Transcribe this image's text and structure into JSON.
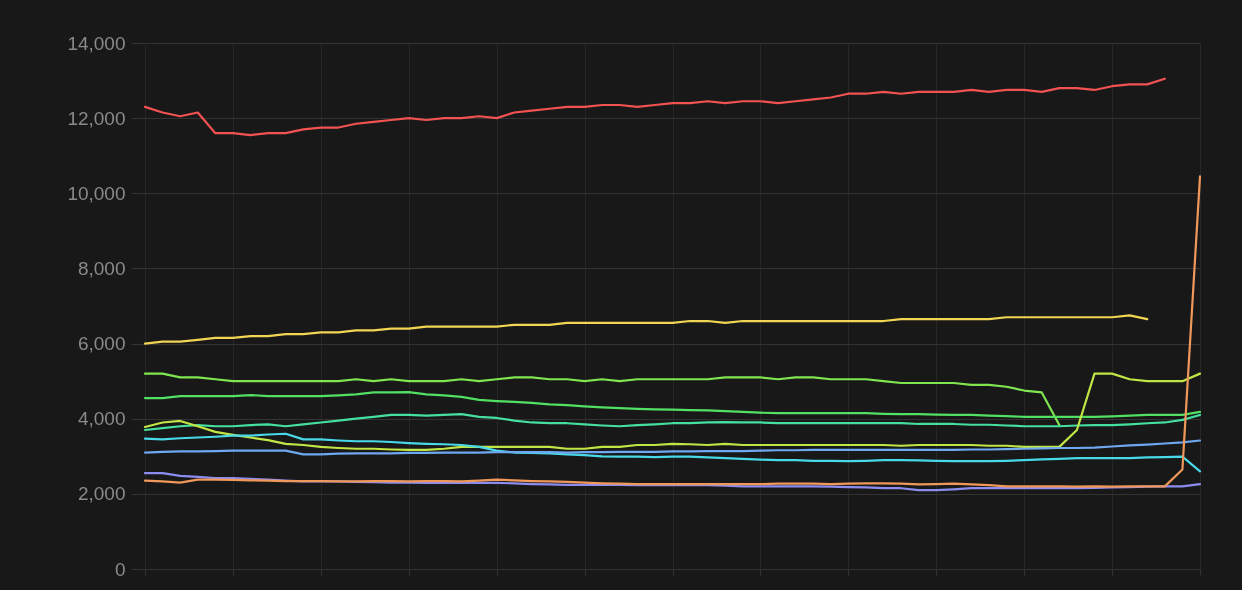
{
  "chart_data": {
    "type": "line",
    "categories": [
      null,
      null,
      null,
      null,
      null,
      null,
      null,
      null,
      null,
      null,
      null,
      null,
      null,
      null,
      null,
      null,
      null,
      null,
      null,
      null,
      null,
      null,
      null,
      null,
      null,
      null,
      null,
      null,
      null,
      null,
      null,
      null,
      null,
      null,
      null,
      null,
      null,
      null,
      null,
      null,
      null,
      null,
      null,
      null,
      null,
      null,
      null,
      null,
      null,
      null,
      null,
      null,
      null,
      null,
      null,
      null,
      null,
      null,
      null,
      null,
      null
    ],
    "ylim": [
      0,
      14000
    ],
    "yticks": [
      0,
      {
        "value": 2000,
        "label": "2,000"
      },
      {
        "value": 4000,
        "label": "4,000"
      },
      {
        "value": 6000,
        "label": "6,000"
      },
      {
        "value": 8000,
        "label": "8,000"
      },
      {
        "value": 10000,
        "label": "10,000"
      },
      {
        "value": 12000,
        "label": "12,000"
      },
      {
        "value": 14000,
        "label": "14,000"
      }
    ],
    "grid": true,
    "legend": false,
    "tick_labels": "y",
    "marker": "none",
    "line_style": "solid",
    "series": [
      {
        "color": "#f25252",
        "values": [
          12300,
          12150,
          12050,
          12150,
          11600,
          11600,
          11550,
          11600,
          11600,
          11700,
          11750,
          11750,
          11850,
          11900,
          11950,
          12000,
          11950,
          12000,
          12000,
          12050,
          12000,
          12150,
          12200,
          12250,
          12300,
          12300,
          12350,
          12350,
          12300,
          12350,
          12400,
          12400,
          12450,
          12400,
          12450,
          12450,
          12400,
          12450,
          12500,
          12550,
          12650,
          12650,
          12700,
          12650,
          12700,
          12700,
          12700,
          12750,
          12700,
          12750,
          12750,
          12700,
          12800,
          12800,
          12750,
          12850,
          12900,
          12900,
          13050,
          null,
          null
        ]
      },
      {
        "color": "#f0d652",
        "values": [
          6000,
          6050,
          6050,
          6100,
          6150,
          6150,
          6200,
          6200,
          6250,
          6250,
          6300,
          6300,
          6350,
          6350,
          6400,
          6400,
          6450,
          6450,
          6450,
          6450,
          6450,
          6500,
          6500,
          6500,
          6550,
          6550,
          6550,
          6550,
          6550,
          6550,
          6550,
          6600,
          6600,
          6550,
          6600,
          6600,
          6600,
          6600,
          6600,
          6600,
          6600,
          6600,
          6600,
          6650,
          6650,
          6650,
          6650,
          6650,
          6650,
          6700,
          6700,
          6700,
          6700,
          6700,
          6700,
          6700,
          6750,
          6650,
          null,
          null,
          null
        ]
      },
      {
        "color": "#7fe650",
        "values": [
          5200,
          5200,
          5100,
          5100,
          5050,
          5000,
          5000,
          5000,
          5000,
          5000,
          5000,
          5000,
          5050,
          5000,
          5050,
          5000,
          5000,
          5000,
          5050,
          5000,
          5050,
          5100,
          5100,
          5050,
          5050,
          5000,
          5050,
          5000,
          5050,
          5050,
          5050,
          5050,
          5050,
          5100,
          5100,
          5100,
          5050,
          5100,
          5100,
          5050,
          5050,
          5050,
          5000,
          4950,
          4950,
          4950,
          4950,
          4900,
          4900,
          4850,
          4750,
          4700,
          3830,
          null,
          null,
          null,
          null,
          null,
          null,
          null,
          null
        ]
      },
      {
        "color": "#52e062",
        "values": [
          4550,
          4550,
          4600,
          4600,
          4600,
          4600,
          4630,
          4600,
          4600,
          4600,
          4600,
          4620,
          4650,
          4700,
          4700,
          4710,
          4650,
          4620,
          4580,
          4500,
          4470,
          4450,
          4420,
          4380,
          4360,
          4330,
          4300,
          4280,
          4260,
          4250,
          4240,
          4230,
          4220,
          4200,
          4180,
          4160,
          4150,
          4150,
          4150,
          4150,
          4150,
          4150,
          4130,
          4120,
          4120,
          4110,
          4100,
          4100,
          4080,
          4070,
          4050,
          4050,
          4050,
          4050,
          4050,
          4060,
          4080,
          4100,
          4100,
          4100,
          4180
        ]
      },
      {
        "color": "#45e0a0",
        "values": [
          3700,
          3750,
          3800,
          3830,
          3800,
          3800,
          3830,
          3850,
          3800,
          3850,
          3900,
          3950,
          4000,
          4050,
          4100,
          4100,
          4080,
          4100,
          4120,
          4050,
          4020,
          3950,
          3900,
          3880,
          3880,
          3850,
          3820,
          3800,
          3830,
          3850,
          3880,
          3880,
          3900,
          3910,
          3900,
          3900,
          3880,
          3880,
          3880,
          3880,
          3880,
          3880,
          3880,
          3880,
          3860,
          3860,
          3860,
          3840,
          3840,
          3820,
          3800,
          3800,
          3800,
          3820,
          3830,
          3830,
          3850,
          3880,
          3900,
          3970,
          4100
        ]
      },
      {
        "color": "#c0e645",
        "values": [
          3780,
          3900,
          3940,
          3800,
          3650,
          3570,
          3500,
          3430,
          3330,
          3300,
          3250,
          3220,
          3200,
          3200,
          3180,
          3170,
          3170,
          3200,
          3250,
          3250,
          3250,
          3250,
          3250,
          3250,
          3200,
          3200,
          3250,
          3250,
          3300,
          3300,
          3330,
          3320,
          3300,
          3330,
          3300,
          3300,
          3300,
          3300,
          3300,
          3300,
          3300,
          3300,
          3300,
          3280,
          3300,
          3300,
          3300,
          3300,
          3280,
          3280,
          3250,
          3250,
          3250,
          3700,
          5200,
          5200,
          5050,
          5000,
          5000,
          5000,
          5200
        ]
      },
      {
        "color": "#48d8e8",
        "values": [
          3470,
          3450,
          3480,
          3500,
          3520,
          3550,
          3550,
          3580,
          3600,
          3450,
          3450,
          3420,
          3400,
          3400,
          3380,
          3350,
          3330,
          3320,
          3300,
          3250,
          3150,
          3100,
          3090,
          3080,
          3050,
          3030,
          3000,
          2990,
          2990,
          2980,
          2990,
          2990,
          2970,
          2950,
          2930,
          2910,
          2900,
          2900,
          2880,
          2880,
          2870,
          2880,
          2900,
          2900,
          2890,
          2880,
          2870,
          2870,
          2870,
          2880,
          2900,
          2920,
          2930,
          2950,
          2950,
          2950,
          2950,
          2970,
          2980,
          2990,
          2600
        ]
      },
      {
        "color": "#6ea8f0",
        "values": [
          3100,
          3120,
          3130,
          3130,
          3140,
          3150,
          3150,
          3150,
          3150,
          3050,
          3050,
          3070,
          3080,
          3080,
          3080,
          3090,
          3090,
          3100,
          3100,
          3100,
          3110,
          3110,
          3110,
          3110,
          3100,
          3110,
          3110,
          3120,
          3120,
          3120,
          3130,
          3130,
          3140,
          3140,
          3140,
          3150,
          3160,
          3160,
          3170,
          3170,
          3170,
          3170,
          3170,
          3170,
          3170,
          3170,
          3170,
          3180,
          3180,
          3190,
          3200,
          3210,
          3220,
          3220,
          3230,
          3260,
          3290,
          3310,
          3340,
          3370,
          3420
        ]
      },
      {
        "color": "#8c8cf0",
        "values": [
          2550,
          2550,
          2480,
          2450,
          2420,
          2420,
          2400,
          2380,
          2350,
          2330,
          2330,
          2330,
          2320,
          2310,
          2300,
          2300,
          2290,
          2290,
          2290,
          2290,
          2290,
          2280,
          2260,
          2250,
          2240,
          2240,
          2240,
          2240,
          2230,
          2230,
          2230,
          2230,
          2230,
          2220,
          2200,
          2200,
          2200,
          2200,
          2200,
          2190,
          2180,
          2170,
          2150,
          2150,
          2100,
          2100,
          2120,
          2150,
          2150,
          2150,
          2150,
          2150,
          2150,
          2150,
          2160,
          2170,
          2180,
          2190,
          2200,
          2200,
          2260
        ]
      },
      {
        "color": "#f0985a",
        "values": [
          2350,
          2330,
          2300,
          2380,
          2380,
          2370,
          2360,
          2350,
          2340,
          2340,
          2340,
          2330,
          2330,
          2340,
          2340,
          2330,
          2340,
          2340,
          2330,
          2350,
          2380,
          2360,
          2340,
          2330,
          2320,
          2300,
          2280,
          2270,
          2260,
          2260,
          2260,
          2260,
          2260,
          2260,
          2260,
          2260,
          2270,
          2270,
          2270,
          2260,
          2270,
          2280,
          2280,
          2270,
          2250,
          2260,
          2270,
          2250,
          2230,
          2200,
          2200,
          2200,
          2200,
          2190,
          2200,
          2190,
          2200,
          2200,
          2200,
          2650,
          10450
        ]
      }
    ]
  }
}
